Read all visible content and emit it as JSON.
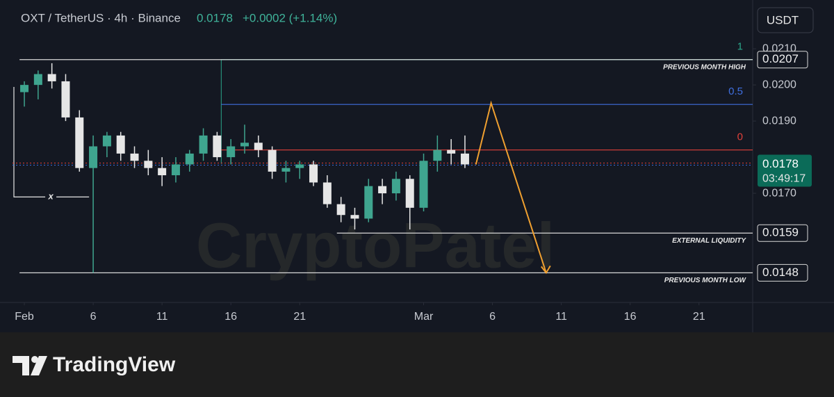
{
  "chart_data": {
    "type": "candlestick",
    "symbol": "OXT / TetherUS · 4h · Binance",
    "change": "+0.0002 (+1.14%)",
    "currency": "USDT",
    "watermark": "CryptoPatel",
    "brand": "TradingView",
    "up_color": "#3fa58f",
    "down_color": "#e6e6e6",
    "x": [
      0,
      1,
      2,
      3,
      4,
      5,
      6,
      7,
      8,
      9,
      10,
      11,
      12,
      13,
      14,
      15,
      16,
      17,
      18,
      19,
      20,
      21,
      22,
      23,
      24,
      25,
      26,
      27,
      28,
      29,
      30,
      31,
      32
    ],
    "open": [
      0.0198,
      0.02,
      0.0203,
      0.0201,
      0.0191,
      0.0177,
      0.0183,
      0.0186,
      0.0181,
      0.0179,
      0.0177,
      0.0175,
      0.0178,
      0.0181,
      0.0186,
      0.018,
      0.0183,
      0.0184,
      0.0182,
      0.0176,
      0.0177,
      0.0178,
      0.0173,
      0.0167,
      0.0164,
      0.0163,
      0.0172,
      0.017,
      0.0174,
      0.0166,
      0.0179,
      0.0182,
      0.0181
    ],
    "high": [
      0.0201,
      0.0204,
      0.0206,
      0.0203,
      0.0193,
      0.0186,
      0.0187,
      0.0187,
      0.0183,
      0.0182,
      0.018,
      0.018,
      0.0182,
      0.0188,
      0.0187,
      0.0185,
      0.0189,
      0.0186,
      0.0183,
      0.0179,
      0.0179,
      0.0179,
      0.0175,
      0.0169,
      0.0166,
      0.0174,
      0.0174,
      0.0176,
      0.0175,
      0.0181,
      0.0186,
      0.0185,
      0.0186
    ],
    "low": [
      0.0194,
      0.0196,
      0.0199,
      0.019,
      0.0176,
      0.0148,
      0.018,
      0.0179,
      0.0177,
      0.0175,
      0.0172,
      0.0173,
      0.0176,
      0.0179,
      0.0179,
      0.0178,
      0.0181,
      0.018,
      0.0174,
      0.0173,
      0.0174,
      0.0172,
      0.0166,
      0.0162,
      0.016,
      0.0162,
      0.0167,
      0.0168,
      0.016,
      0.0165,
      0.0176,
      0.0178,
      0.0177
    ],
    "close": [
      0.02,
      0.0203,
      0.0201,
      0.0191,
      0.0177,
      0.0183,
      0.0186,
      0.0181,
      0.0179,
      0.0177,
      0.0175,
      0.0178,
      0.0181,
      0.0186,
      0.018,
      0.0183,
      0.0184,
      0.0182,
      0.0176,
      0.0177,
      0.0178,
      0.0173,
      0.0167,
      0.0164,
      0.0163,
      0.0172,
      0.017,
      0.0174,
      0.0166,
      0.0179,
      0.0182,
      0.0181,
      0.0178
    ],
    "xlim": [
      -0.86,
      52.9
    ],
    "ylim": [
      0.01398,
      0.02235
    ],
    "xticks": [
      {
        "value": 0,
        "label": "Feb"
      },
      {
        "value": 5,
        "label": "6"
      },
      {
        "value": 10,
        "label": "11"
      },
      {
        "value": 15,
        "label": "16"
      },
      {
        "value": 20,
        "label": "21"
      },
      {
        "value": 29,
        "label": "Mar"
      },
      {
        "value": 34,
        "label": "6"
      },
      {
        "value": 39,
        "label": "11"
      },
      {
        "value": 44,
        "label": "16"
      },
      {
        "value": 49,
        "label": "21"
      }
    ],
    "yticks": [
      {
        "value": 0.021,
        "label": "0.0210"
      },
      {
        "value": 0.02,
        "label": "0.0200"
      },
      {
        "value": 0.019,
        "label": "0.0190"
      },
      {
        "value": 0.017,
        "label": "0.0170"
      }
    ],
    "last": {
      "value": 0.0178,
      "countdown": "03:49:17"
    },
    "levels": [
      {
        "label": "PREVIOUS MONTH HIGH",
        "value": 0.0207,
        "start": -0.35
      },
      {
        "label": "EXTERNAL LIQUIDITY",
        "value": 0.0159,
        "start": 22.7
      },
      {
        "label": "PREVIOUS MONTH LOW",
        "value": 0.0148,
        "start": -0.35
      }
    ],
    "fib": {
      "start": 14.3,
      "levels": [
        {
          "label": "1",
          "value": 0.0207,
          "color": "#2aa58a"
        },
        {
          "label": "0.5",
          "value": 0.01946,
          "color": "#3f6fe0"
        },
        {
          "label": "0",
          "value": 0.0182,
          "color": "#e0403a"
        }
      ]
    },
    "marker": {
      "label": "x",
      "value": 0.0169,
      "start": -0.86,
      "end": 4.7
    },
    "projection": {
      "color": "#f0a030",
      "x": [
        32.8,
        33.9,
        37.9
      ],
      "y": [
        0.0178,
        0.0195,
        0.0148
      ]
    }
  }
}
